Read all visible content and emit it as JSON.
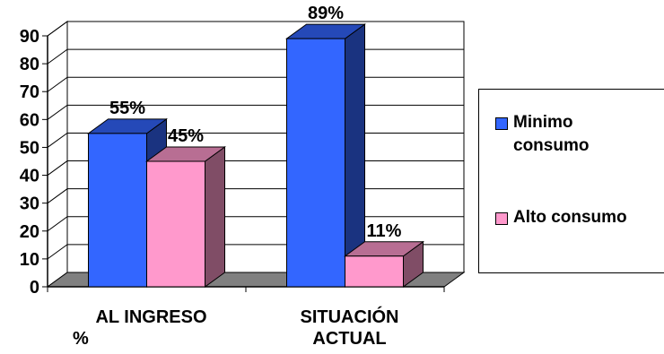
{
  "chart_data": {
    "type": "bar",
    "style": "3d-clustered",
    "categories": [
      "AL INGRESO %",
      "SITUACIÓN ACTUAL"
    ],
    "category_lines": [
      [
        "AL INGRESO",
        "%"
      ],
      [
        "SITUACIÓN",
        "ACTUAL"
      ]
    ],
    "series": [
      {
        "name": "Minimo consumo",
        "name_lines": [
          "Minimo",
          "consumo"
        ],
        "color": "#3366ff",
        "values": [
          55,
          89
        ],
        "labels": [
          "55%",
          "89%"
        ]
      },
      {
        "name": "Alto consumo",
        "name_lines": [
          "Alto consumo"
        ],
        "color": "#ff99cc",
        "values": [
          45,
          11
        ],
        "labels": [
          "45%",
          "11%"
        ]
      }
    ],
    "y_ticks": [
      "0",
      "10",
      "20",
      "30",
      "40",
      "50",
      "60",
      "70",
      "80",
      "90"
    ],
    "ylim": [
      0,
      90
    ],
    "grid": true,
    "legend": "right"
  }
}
